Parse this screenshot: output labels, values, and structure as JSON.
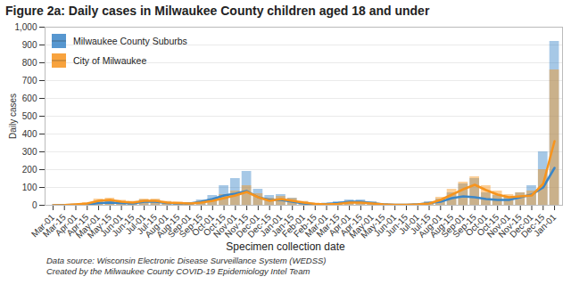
{
  "chart_data": {
    "type": "line",
    "title": "Figure 2a: Daily cases in Milwaukee County children aged 18 and under",
    "x_label": "Specimen collection date",
    "y_label": "Daily cases",
    "notes": [
      "Data source: Wisconsin Electronic Disease Surveillance System (WEDSS)",
      "Created by the Milwaukee County COVID-19 Epidemiology Intel Team"
    ],
    "categories": [
      "Mar-01",
      "Mar-15",
      "Apr-01",
      "Apr-15",
      "May-01",
      "May-15",
      "Jun-01",
      "Jun-15",
      "Jul-01",
      "Jul-15",
      "Aug-01",
      "Aug-15",
      "Sep-01",
      "Sep-15",
      "Oct-01",
      "Oct-15",
      "Nov-01",
      "Nov-15",
      "Dec-01",
      "Dec-15",
      "Jan-01",
      "Jan-15",
      "Feb-01",
      "Feb-15",
      "Mar-01",
      "Mar-15",
      "Apr-01",
      "Apr-15",
      "May-01",
      "May-15",
      "Jun-01",
      "Jun-15",
      "Jul-01",
      "Jul-15",
      "Aug-01",
      "Aug-15",
      "Sep-01",
      "Sep-15",
      "Oct-01",
      "Oct-15",
      "Nov-01",
      "Nov-15",
      "Dec-01",
      "Dec-15",
      "Jan-01"
    ],
    "series": [
      {
        "name": "Milwaukee County Suburbs",
        "color": "#3a86c8",
        "values": [
          0,
          1,
          3,
          5,
          12,
          15,
          12,
          10,
          20,
          20,
          12,
          10,
          10,
          20,
          35,
          55,
          65,
          80,
          45,
          30,
          30,
          20,
          10,
          6,
          8,
          12,
          20,
          20,
          12,
          5,
          2,
          2,
          5,
          12,
          20,
          40,
          50,
          45,
          35,
          30,
          30,
          45,
          60,
          100,
          210
        ],
        "daily": [
          0,
          1,
          4,
          8,
          18,
          22,
          18,
          14,
          30,
          28,
          18,
          15,
          14,
          30,
          55,
          110,
          150,
          190,
          90,
          55,
          60,
          40,
          18,
          10,
          12,
          20,
          30,
          30,
          20,
          8,
          3,
          3,
          8,
          20,
          35,
          70,
          120,
          150,
          70,
          55,
          45,
          70,
          110,
          300,
          920
        ]
      },
      {
        "name": "City of Milwaukee",
        "color": "#f7941d",
        "values": [
          0,
          1,
          5,
          10,
          25,
          30,
          20,
          15,
          25,
          25,
          15,
          12,
          10,
          15,
          25,
          40,
          55,
          75,
          45,
          25,
          35,
          25,
          15,
          8,
          5,
          8,
          15,
          15,
          10,
          5,
          2,
          2,
          5,
          10,
          30,
          60,
          90,
          115,
          85,
          60,
          45,
          50,
          55,
          120,
          360
        ],
        "daily": [
          0,
          1,
          6,
          14,
          35,
          40,
          28,
          22,
          35,
          35,
          22,
          18,
          15,
          22,
          35,
          60,
          80,
          110,
          65,
          40,
          50,
          38,
          22,
          12,
          8,
          12,
          22,
          22,
          16,
          8,
          3,
          3,
          8,
          16,
          45,
          90,
          130,
          160,
          110,
          80,
          60,
          70,
          80,
          200,
          760
        ]
      }
    ],
    "ylim": [
      0,
      1000
    ],
    "yticks": [
      0,
      100,
      200,
      300,
      400,
      500,
      600,
      700,
      800,
      900,
      1000
    ],
    "grid": true,
    "legend": "top-left"
  }
}
